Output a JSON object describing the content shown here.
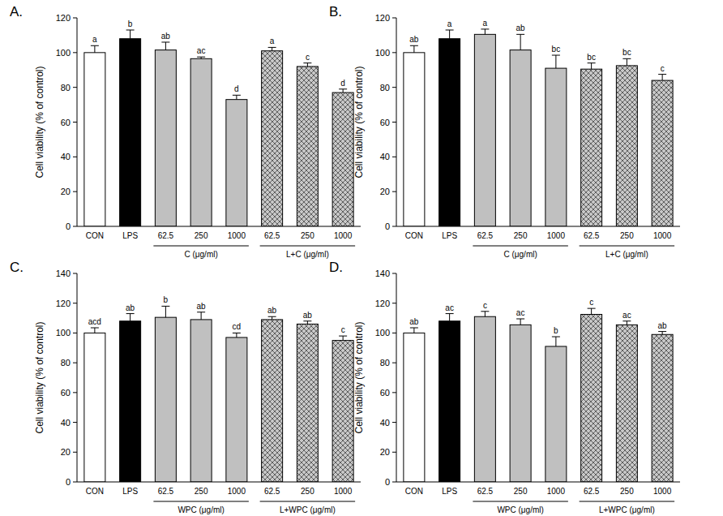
{
  "chart_data": [
    {
      "type": "bar",
      "title": "A.",
      "y_label": "Cell viability (% of control)",
      "categories": [
        "CON",
        "LPS",
        "62.5",
        "250",
        "1000",
        "62.5",
        "250",
        "1000"
      ],
      "values": [
        100,
        108,
        101.5,
        96.5,
        73,
        101,
        92,
        77
      ],
      "errors": [
        4,
        5,
        4.5,
        1,
        2.5,
        2,
        2,
        2
      ],
      "annotations": [
        "a",
        "b",
        "ab",
        "ac",
        "d",
        "a",
        "c",
        "d"
      ],
      "colors": [
        "#ffffff",
        "#000000",
        "#c0c0c0",
        "#c0c0c0",
        "#c0c0c0",
        "#c0c0c0",
        "#c0c0c0",
        "#c0c0c0"
      ],
      "groups": [
        {
          "label": "C (μg/ml)",
          "from": 2,
          "to": 4
        },
        {
          "label": "L+C (μg/ml)",
          "from": 5,
          "to": 7
        }
      ],
      "ylim": [
        0,
        120
      ],
      "yticks": [
        0,
        20,
        40,
        60,
        80,
        100,
        120
      ]
    },
    {
      "type": "bar",
      "title": "B.",
      "y_label": "Cell viability (% of control)",
      "categories": [
        "CON",
        "LPS",
        "62.5",
        "250",
        "1000",
        "62.5",
        "250",
        "1000"
      ],
      "values": [
        100,
        108,
        110.5,
        101.5,
        91,
        90.5,
        92.5,
        84
      ],
      "errors": [
        4,
        5,
        3,
        9,
        7.5,
        3.5,
        4,
        3.5
      ],
      "annotations": [
        "ab",
        "a",
        "a",
        "ab",
        "bc",
        "bc",
        "bc",
        "c"
      ],
      "colors": [
        "#ffffff",
        "#000000",
        "#c0c0c0",
        "#c0c0c0",
        "#c0c0c0",
        "#c0c0c0",
        "#c0c0c0",
        "#c0c0c0"
      ],
      "groups": [
        {
          "label": "C (μg/ml)",
          "from": 2,
          "to": 4
        },
        {
          "label": "L+C (μg/ml)",
          "from": 5,
          "to": 7
        }
      ],
      "ylim": [
        0,
        120
      ],
      "yticks": [
        0,
        20,
        40,
        60,
        80,
        100,
        120
      ]
    },
    {
      "type": "bar",
      "title": "C.",
      "y_label": "Cell viability (% of control)",
      "categories": [
        "CON",
        "LPS",
        "62.5",
        "250",
        "1000",
        "62.5",
        "250",
        "1000"
      ],
      "values": [
        100,
        108,
        110.5,
        109,
        97,
        109,
        106,
        95
      ],
      "errors": [
        3.5,
        5,
        7.5,
        5,
        3,
        2,
        2,
        3
      ],
      "annotations": [
        "acd",
        "ab",
        "b",
        "ab",
        "cd",
        "ab",
        "ab",
        "c"
      ],
      "colors": [
        "#ffffff",
        "#000000",
        "#c0c0c0",
        "#c0c0c0",
        "#c0c0c0",
        "#c0c0c0",
        "#c0c0c0",
        "#c0c0c0"
      ],
      "groups": [
        {
          "label": "WPC (μg/ml)",
          "from": 2,
          "to": 4
        },
        {
          "label": "L+WPC (μg/ml)",
          "from": 5,
          "to": 7
        }
      ],
      "ylim": [
        0,
        140
      ],
      "yticks": [
        0,
        20,
        40,
        60,
        80,
        100,
        120,
        140
      ]
    },
    {
      "type": "bar",
      "title": "D.",
      "y_label": "Cell viability (% of control)",
      "categories": [
        "CON",
        "LPS",
        "62.5",
        "250",
        "1000",
        "62.5",
        "250",
        "1000"
      ],
      "values": [
        100,
        108,
        111,
        105.5,
        91,
        112.5,
        105.5,
        99
      ],
      "errors": [
        3.5,
        5,
        3.5,
        4,
        6.5,
        4,
        2.5,
        2
      ],
      "annotations": [
        "ab",
        "ac",
        "c",
        "ac",
        "b",
        "c",
        "ac",
        "ab"
      ],
      "colors": [
        "#ffffff",
        "#000000",
        "#c0c0c0",
        "#c0c0c0",
        "#c0c0c0",
        "#c0c0c0",
        "#c0c0c0",
        "#c0c0c0"
      ],
      "groups": [
        {
          "label": "WPC (μg/ml)",
          "from": 2,
          "to": 4
        },
        {
          "label": "L+WPC (μg/ml)",
          "from": 5,
          "to": 7
        }
      ],
      "ylim": [
        0,
        140
      ],
      "yticks": [
        0,
        20,
        40,
        60,
        80,
        100,
        120,
        140
      ]
    }
  ]
}
